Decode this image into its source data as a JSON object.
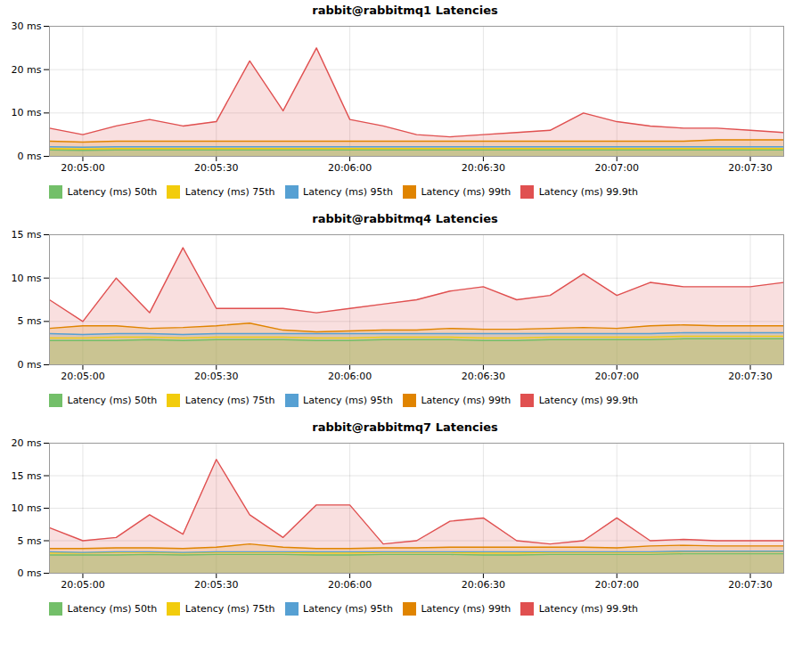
{
  "chart_data": [
    {
      "type": "area",
      "title": "rabbit@rabbitmq1 Latencies",
      "x": [
        0,
        1,
        2,
        3,
        4,
        5,
        6,
        7,
        8,
        9,
        10,
        11,
        12,
        13,
        14,
        15,
        16,
        17,
        18,
        19,
        20,
        21,
        22
      ],
      "xlim": [
        0,
        22
      ],
      "xticks": [
        {
          "value": 1,
          "label": "20:05:00"
        },
        {
          "value": 5,
          "label": "20:05:30"
        },
        {
          "value": 9,
          "label": "20:06:00"
        },
        {
          "value": 13,
          "label": "20:06:30"
        },
        {
          "value": 17,
          "label": "20:07:00"
        },
        {
          "value": 21,
          "label": "20:07:30"
        }
      ],
      "ylim": [
        0,
        30
      ],
      "yticks": [
        {
          "value": 0,
          "label": "0 ms"
        },
        {
          "value": 10,
          "label": "10 ms"
        },
        {
          "value": 20,
          "label": "20 ms"
        },
        {
          "value": 30,
          "label": "30 ms"
        }
      ],
      "grid": true,
      "legend": "bottom",
      "stacked": false,
      "series": [
        {
          "name": "Latency (ms) 50th",
          "color": "#73bf69",
          "values": [
            1.5,
            1.4,
            1.5,
            1.5,
            1.5,
            1.5,
            1.5,
            1.5,
            1.5,
            1.5,
            1.5,
            1.5,
            1.5,
            1.5,
            1.5,
            1.5,
            1.5,
            1.5,
            1.5,
            1.5,
            1.5,
            1.5,
            1.5
          ]
        },
        {
          "name": "Latency (ms) 75th",
          "color": "#f2cc0c",
          "values": [
            1.8,
            1.7,
            1.8,
            1.8,
            1.8,
            1.8,
            1.8,
            1.8,
            1.8,
            1.8,
            1.8,
            1.8,
            1.8,
            1.8,
            1.8,
            1.8,
            1.8,
            1.8,
            1.8,
            1.8,
            1.8,
            1.8,
            1.8
          ]
        },
        {
          "name": "Latency (ms) 95th",
          "color": "#56a0d3",
          "values": [
            2.2,
            2.1,
            2.2,
            2.2,
            2.2,
            2.2,
            2.2,
            2.2,
            2.2,
            2.2,
            2.2,
            2.2,
            2.2,
            2.2,
            2.2,
            2.2,
            2.2,
            2.2,
            2.2,
            2.2,
            2.2,
            2.2,
            2.2
          ]
        },
        {
          "name": "Latency (ms) 99th",
          "color": "#e08400",
          "values": [
            3.5,
            3.3,
            3.5,
            3.5,
            3.5,
            3.5,
            3.5,
            3.5,
            3.5,
            3.5,
            3.5,
            3.5,
            3.5,
            3.5,
            3.5,
            3.5,
            3.5,
            3.5,
            3.5,
            3.5,
            3.8,
            3.8,
            3.8
          ]
        },
        {
          "name": "Latency (ms) 99.9th",
          "color": "#e05050",
          "values": [
            6.5,
            5.0,
            7.0,
            8.5,
            7.0,
            8.0,
            22.0,
            10.5,
            25.0,
            8.5,
            7.0,
            5.0,
            4.5,
            5.0,
            5.5,
            6.0,
            10.0,
            8.0,
            7.0,
            6.5,
            6.5,
            6.0,
            5.5
          ]
        }
      ]
    },
    {
      "type": "area",
      "title": "rabbit@rabbitmq4 Latencies",
      "x": [
        0,
        1,
        2,
        3,
        4,
        5,
        6,
        7,
        8,
        9,
        10,
        11,
        12,
        13,
        14,
        15,
        16,
        17,
        18,
        19,
        20,
        21,
        22
      ],
      "xlim": [
        0,
        22
      ],
      "xticks": [
        {
          "value": 1,
          "label": "20:05:00"
        },
        {
          "value": 5,
          "label": "20:05:30"
        },
        {
          "value": 9,
          "label": "20:06:00"
        },
        {
          "value": 13,
          "label": "20:06:30"
        },
        {
          "value": 17,
          "label": "20:07:00"
        },
        {
          "value": 21,
          "label": "20:07:30"
        }
      ],
      "ylim": [
        0,
        15
      ],
      "yticks": [
        {
          "value": 0,
          "label": "0 ms"
        },
        {
          "value": 5,
          "label": "5 ms"
        },
        {
          "value": 10,
          "label": "10 ms"
        },
        {
          "value": 15,
          "label": "15 ms"
        }
      ],
      "grid": true,
      "legend": "bottom",
      "stacked": false,
      "series": [
        {
          "name": "Latency (ms) 50th",
          "color": "#73bf69",
          "values": [
            2.8,
            2.8,
            2.8,
            2.9,
            2.8,
            2.9,
            2.9,
            2.9,
            2.8,
            2.8,
            2.9,
            2.9,
            2.9,
            2.8,
            2.8,
            2.9,
            2.9,
            2.9,
            2.9,
            3.0,
            3.0,
            3.0,
            3.0
          ]
        },
        {
          "name": "Latency (ms) 75th",
          "color": "#f2cc0c",
          "values": [
            3.1,
            3.1,
            3.2,
            3.2,
            3.1,
            3.2,
            3.2,
            3.2,
            3.1,
            3.1,
            3.2,
            3.2,
            3.2,
            3.1,
            3.1,
            3.2,
            3.2,
            3.2,
            3.2,
            3.3,
            3.3,
            3.3,
            3.3
          ]
        },
        {
          "name": "Latency (ms) 95th",
          "color": "#56a0d3",
          "values": [
            3.6,
            3.5,
            3.6,
            3.6,
            3.5,
            3.6,
            3.6,
            3.6,
            3.6,
            3.6,
            3.6,
            3.6,
            3.6,
            3.6,
            3.6,
            3.6,
            3.6,
            3.6,
            3.6,
            3.7,
            3.7,
            3.7,
            3.7
          ]
        },
        {
          "name": "Latency (ms) 99th",
          "color": "#e08400",
          "values": [
            4.2,
            4.5,
            4.5,
            4.2,
            4.3,
            4.5,
            4.8,
            4.0,
            3.8,
            3.9,
            4.0,
            4.0,
            4.2,
            4.1,
            4.1,
            4.2,
            4.3,
            4.2,
            4.5,
            4.6,
            4.5,
            4.5,
            4.5
          ]
        },
        {
          "name": "Latency (ms) 99.9th",
          "color": "#e05050",
          "values": [
            7.5,
            5.0,
            10.0,
            6.0,
            13.5,
            6.5,
            6.5,
            6.5,
            6.0,
            6.5,
            7.0,
            7.5,
            8.5,
            9.0,
            7.5,
            8.0,
            10.5,
            8.0,
            9.5,
            9.0,
            9.0,
            9.0,
            9.5
          ]
        }
      ]
    },
    {
      "type": "area",
      "title": "rabbit@rabbitmq7 Latencies",
      "x": [
        0,
        1,
        2,
        3,
        4,
        5,
        6,
        7,
        8,
        9,
        10,
        11,
        12,
        13,
        14,
        15,
        16,
        17,
        18,
        19,
        20,
        21,
        22
      ],
      "xlim": [
        0,
        22
      ],
      "xticks": [
        {
          "value": 1,
          "label": "20:05:00"
        },
        {
          "value": 5,
          "label": "20:05:30"
        },
        {
          "value": 9,
          "label": "20:06:00"
        },
        {
          "value": 13,
          "label": "20:06:30"
        },
        {
          "value": 17,
          "label": "20:07:00"
        },
        {
          "value": 21,
          "label": "20:07:30"
        }
      ],
      "ylim": [
        0,
        20
      ],
      "yticks": [
        {
          "value": 0,
          "label": "0 ms"
        },
        {
          "value": 5,
          "label": "5 ms"
        },
        {
          "value": 10,
          "label": "10 ms"
        },
        {
          "value": 15,
          "label": "15 ms"
        },
        {
          "value": 20,
          "label": "20 ms"
        }
      ],
      "grid": true,
      "legend": "bottom",
      "stacked": false,
      "series": [
        {
          "name": "Latency (ms) 50th",
          "color": "#73bf69",
          "values": [
            2.8,
            2.8,
            2.8,
            2.9,
            2.8,
            2.9,
            2.9,
            2.9,
            2.8,
            2.8,
            2.9,
            2.9,
            2.9,
            2.8,
            2.8,
            2.9,
            2.9,
            2.9,
            2.9,
            3.0,
            3.0,
            3.0,
            3.0
          ]
        },
        {
          "name": "Latency (ms) 75th",
          "color": "#f2cc0c",
          "values": [
            3.1,
            3.1,
            3.2,
            3.2,
            3.1,
            3.2,
            3.2,
            3.2,
            3.1,
            3.1,
            3.2,
            3.2,
            3.2,
            3.1,
            3.1,
            3.2,
            3.2,
            3.2,
            3.2,
            3.3,
            3.3,
            3.3,
            3.3
          ]
        },
        {
          "name": "Latency (ms) 95th",
          "color": "#56a0d3",
          "values": [
            3.3,
            3.2,
            3.3,
            3.3,
            3.2,
            3.3,
            3.3,
            3.3,
            3.3,
            3.3,
            3.3,
            3.3,
            3.3,
            3.3,
            3.3,
            3.3,
            3.3,
            3.3,
            3.3,
            3.4,
            3.4,
            3.4,
            3.4
          ]
        },
        {
          "name": "Latency (ms) 99th",
          "color": "#e08400",
          "values": [
            3.8,
            3.8,
            3.9,
            3.9,
            3.8,
            4.0,
            4.5,
            4.0,
            3.8,
            3.8,
            3.9,
            3.9,
            4.0,
            4.0,
            4.0,
            4.0,
            4.0,
            3.9,
            4.2,
            4.3,
            4.2,
            4.2,
            4.2
          ]
        },
        {
          "name": "Latency (ms) 99.9th",
          "color": "#e05050",
          "values": [
            7.0,
            5.0,
            5.5,
            9.0,
            6.0,
            17.5,
            9.0,
            5.5,
            10.5,
            10.5,
            4.5,
            5.0,
            8.0,
            8.5,
            5.0,
            4.5,
            5.0,
            8.5,
            5.0,
            5.2,
            5.0,
            5.0,
            5.0
          ]
        }
      ]
    }
  ]
}
